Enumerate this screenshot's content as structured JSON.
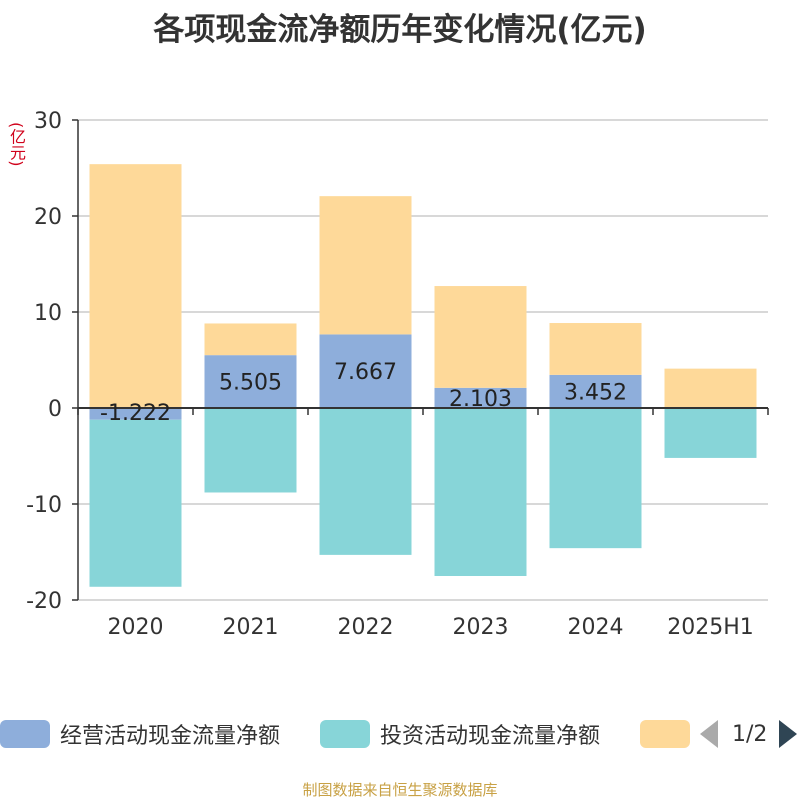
{
  "title": "各项现金流净额历年变化情况(亿元)",
  "unit_label": "(亿元)",
  "source": "制图数据来自恒生聚源数据库",
  "legend": {
    "page_text": "1/2"
  },
  "colors": {
    "operating": "#8eaedb",
    "investing": "#87d5d8",
    "financing": "#fed999",
    "axis": "#333333",
    "grid": "#cccccc"
  },
  "chart_data": {
    "type": "bar",
    "stacked": true,
    "title": "各项现金流净额历年变化情况(亿元)",
    "ylabel": "(亿元)",
    "ylim": [
      -20,
      30
    ],
    "yticks": [
      -20,
      -10,
      0,
      10,
      20,
      30
    ],
    "grid": true,
    "legend_position": "bottom",
    "categories": [
      "2020",
      "2021",
      "2022",
      "2023",
      "2024",
      "2025H1"
    ],
    "series": [
      {
        "name": "经营活动现金流量净额",
        "values": [
          -1.222,
          5.505,
          7.667,
          2.103,
          3.452,
          null
        ],
        "labels": [
          "-1.222",
          "5.505",
          "7.667",
          "2.103",
          "3.452",
          ""
        ]
      },
      {
        "name": "投资活动现金流量净额",
        "values": [
          -17.4,
          -8.8,
          -15.3,
          -17.5,
          -14.6,
          -5.2
        ]
      },
      {
        "name": "",
        "values": [
          25.4,
          3.3,
          14.4,
          10.6,
          5.4,
          4.1
        ]
      }
    ]
  }
}
